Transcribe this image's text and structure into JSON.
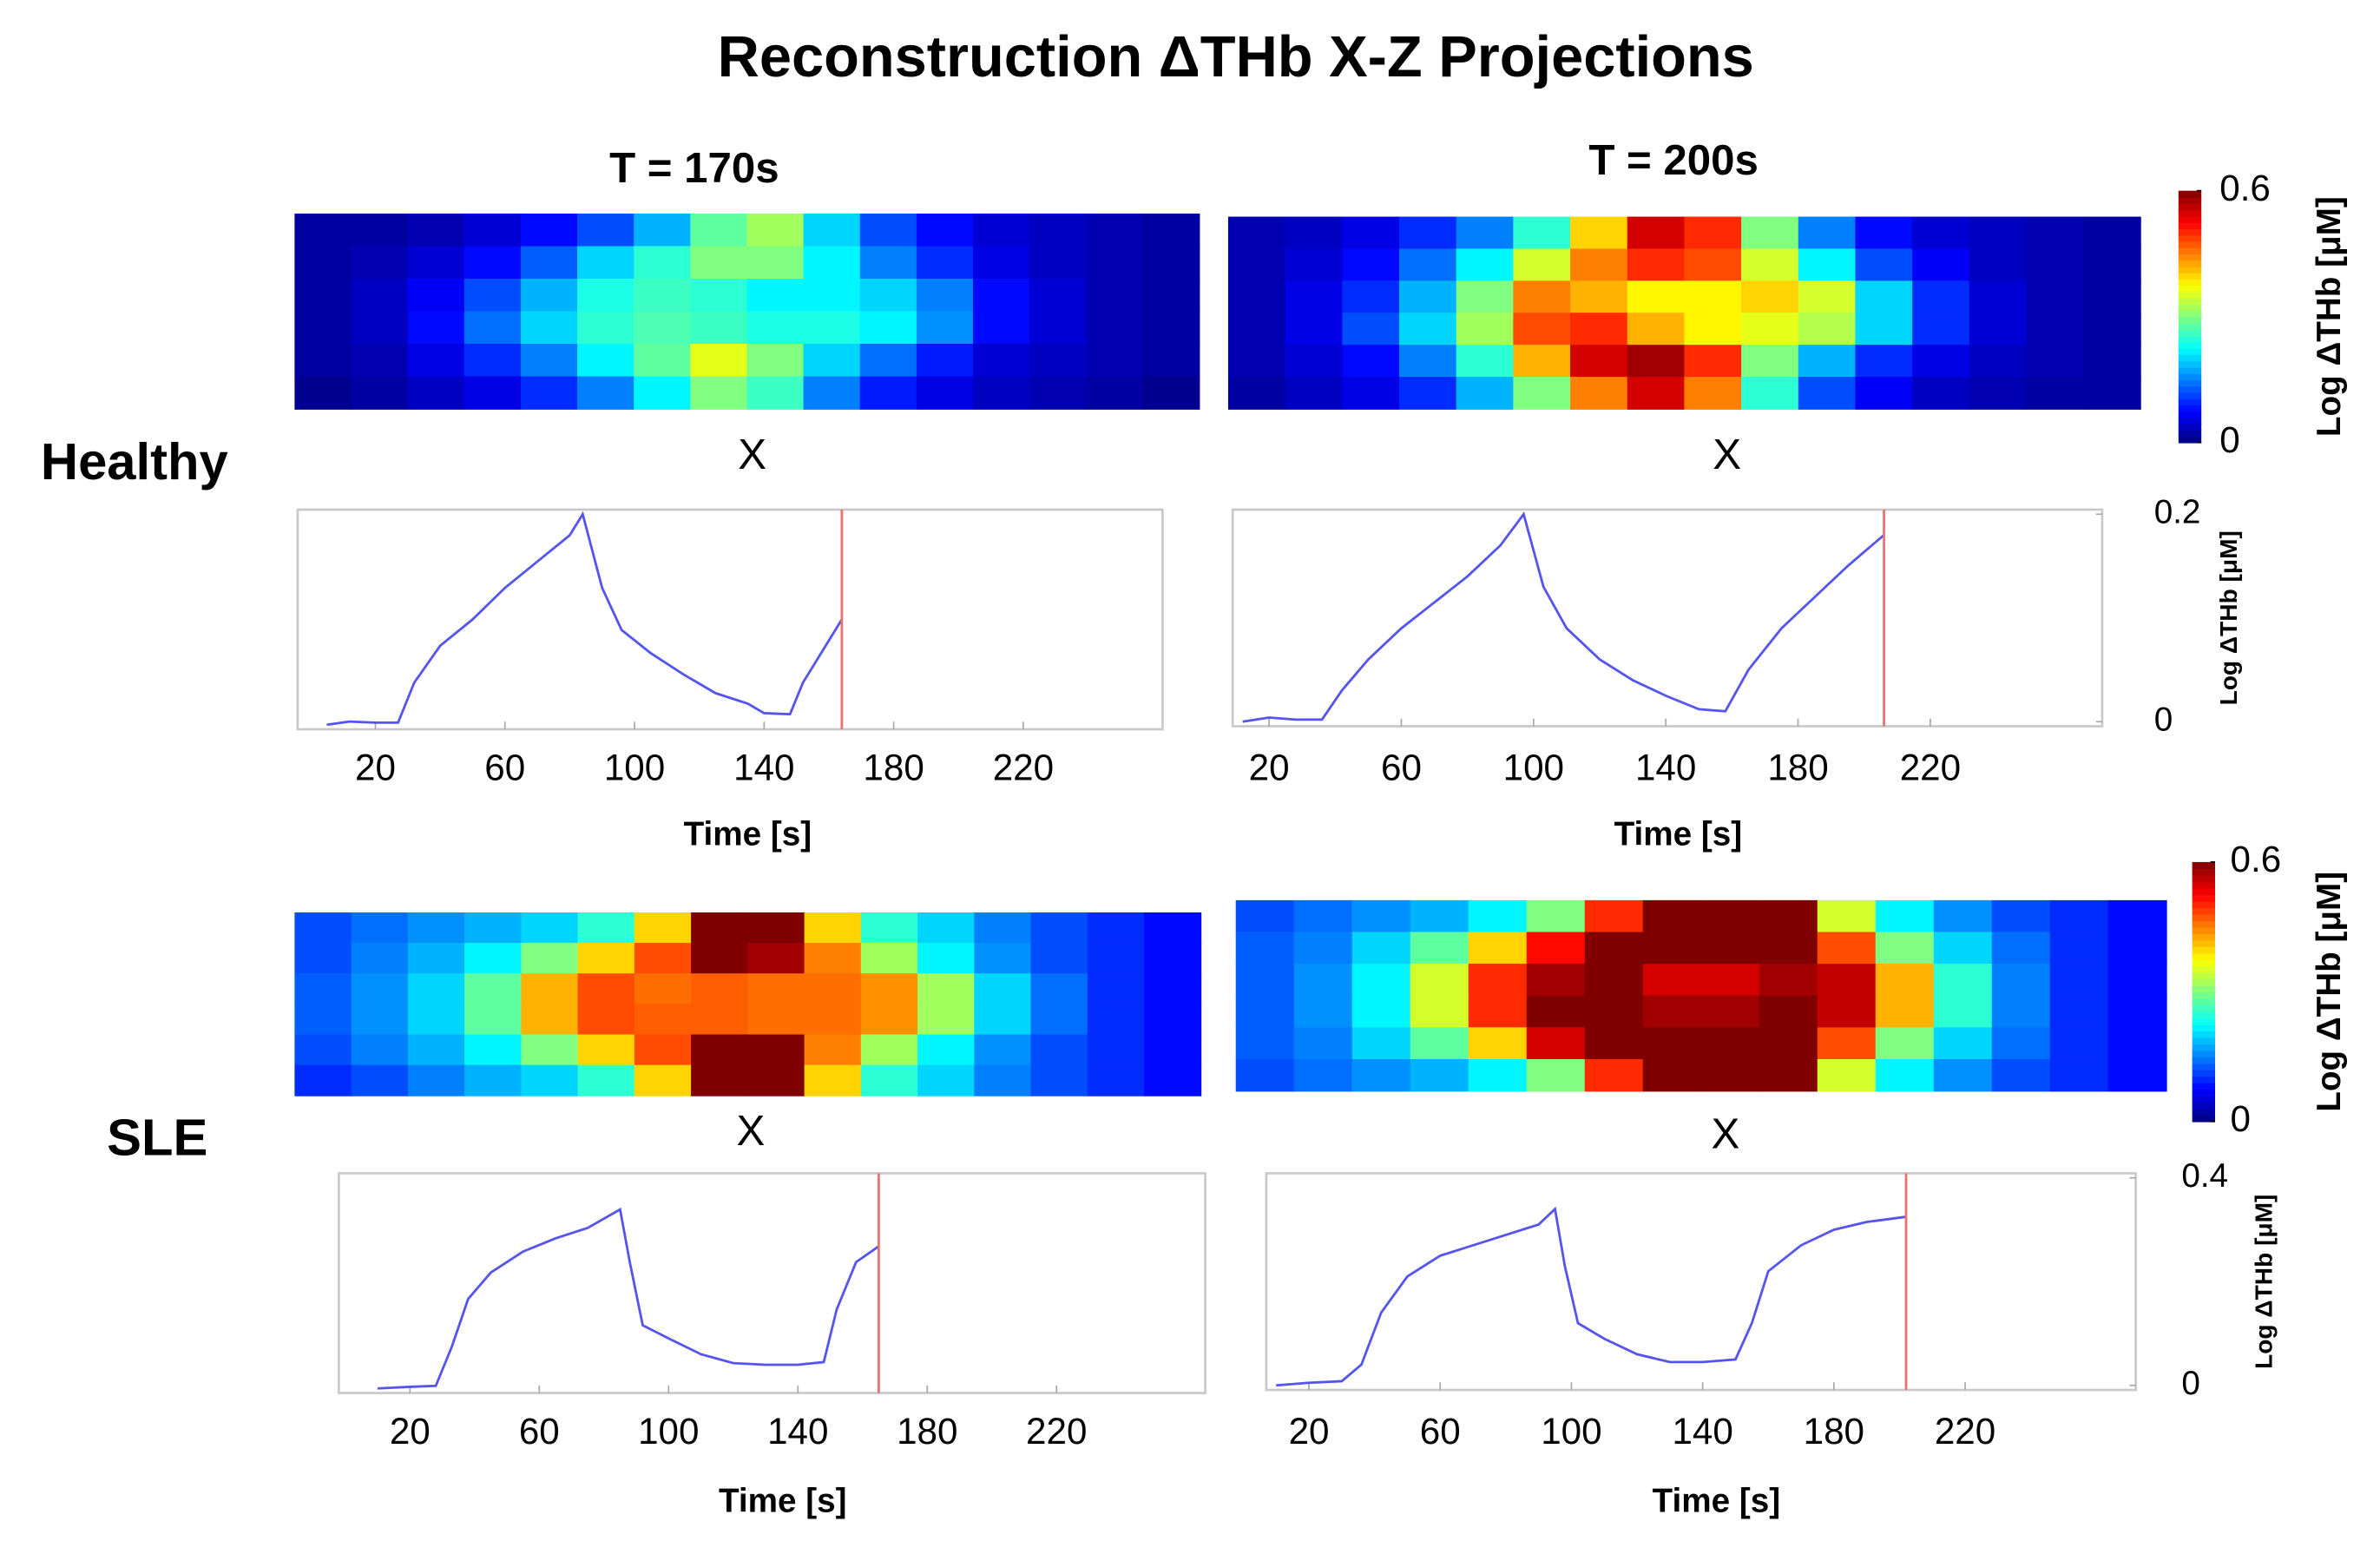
{
  "title": "Reconstruction ΔTHb X-Z Projections",
  "row_labels": [
    "Healthy",
    "SLE"
  ],
  "chart_data": [
    {
      "type": "heatmap",
      "title": "T = 170s",
      "xlabel": "X",
      "zlim": [
        0,
        0.6
      ],
      "colormap": "jet",
      "values": [
        [
          0.02,
          0.02,
          0.03,
          0.05,
          0.08,
          0.12,
          0.18,
          0.28,
          0.32,
          0.2,
          0.12,
          0.08,
          0.05,
          0.04,
          0.03,
          0.02
        ],
        [
          0.02,
          0.03,
          0.05,
          0.08,
          0.13,
          0.2,
          0.25,
          0.3,
          0.3,
          0.22,
          0.15,
          0.1,
          0.06,
          0.04,
          0.03,
          0.02
        ],
        [
          0.02,
          0.04,
          0.07,
          0.12,
          0.18,
          0.24,
          0.26,
          0.25,
          0.22,
          0.22,
          0.2,
          0.15,
          0.08,
          0.05,
          0.03,
          0.02
        ],
        [
          0.02,
          0.04,
          0.08,
          0.14,
          0.2,
          0.25,
          0.27,
          0.26,
          0.24,
          0.24,
          0.22,
          0.16,
          0.08,
          0.05,
          0.03,
          0.02
        ],
        [
          0.02,
          0.03,
          0.06,
          0.1,
          0.15,
          0.22,
          0.28,
          0.36,
          0.3,
          0.2,
          0.14,
          0.09,
          0.05,
          0.04,
          0.03,
          0.02
        ],
        [
          0.01,
          0.02,
          0.04,
          0.06,
          0.1,
          0.15,
          0.22,
          0.3,
          0.26,
          0.15,
          0.09,
          0.06,
          0.04,
          0.03,
          0.02,
          0.01
        ]
      ]
    },
    {
      "type": "heatmap",
      "title": "T = 200s",
      "xlabel": "X",
      "zlim": [
        0,
        0.6
      ],
      "colormap": "jet",
      "colorbar_ticks": [
        0,
        0.6
      ],
      "colorbar_label": "Log ΔTHb [μM]",
      "values": [
        [
          0.03,
          0.04,
          0.06,
          0.1,
          0.15,
          0.25,
          0.4,
          0.55,
          0.5,
          0.3,
          0.15,
          0.08,
          0.05,
          0.04,
          0.03,
          0.02
        ],
        [
          0.03,
          0.05,
          0.08,
          0.14,
          0.22,
          0.35,
          0.45,
          0.5,
          0.48,
          0.35,
          0.22,
          0.12,
          0.07,
          0.04,
          0.03,
          0.02
        ],
        [
          0.03,
          0.06,
          0.1,
          0.18,
          0.3,
          0.45,
          0.42,
          0.38,
          0.38,
          0.4,
          0.35,
          0.2,
          0.1,
          0.05,
          0.03,
          0.02
        ],
        [
          0.03,
          0.06,
          0.12,
          0.2,
          0.32,
          0.48,
          0.5,
          0.42,
          0.38,
          0.36,
          0.33,
          0.2,
          0.1,
          0.05,
          0.03,
          0.02
        ],
        [
          0.03,
          0.05,
          0.08,
          0.15,
          0.25,
          0.42,
          0.55,
          0.58,
          0.5,
          0.3,
          0.18,
          0.1,
          0.06,
          0.04,
          0.03,
          0.02
        ],
        [
          0.02,
          0.04,
          0.06,
          0.1,
          0.18,
          0.3,
          0.45,
          0.55,
          0.45,
          0.25,
          0.12,
          0.07,
          0.04,
          0.03,
          0.02,
          0.02
        ]
      ]
    },
    {
      "type": "heatmap",
      "xlabel": "X",
      "zlim": [
        0,
        0.6
      ],
      "colormap": "jet",
      "values": [
        [
          0.12,
          0.14,
          0.16,
          0.18,
          0.2,
          0.25,
          0.4,
          0.6,
          0.6,
          0.4,
          0.25,
          0.2,
          0.15,
          0.12,
          0.1,
          0.08
        ],
        [
          0.12,
          0.15,
          0.18,
          0.22,
          0.3,
          0.4,
          0.48,
          0.6,
          0.58,
          0.45,
          0.32,
          0.22,
          0.16,
          0.12,
          0.1,
          0.08
        ],
        [
          0.13,
          0.16,
          0.2,
          0.28,
          0.42,
          0.48,
          0.46,
          0.47,
          0.46,
          0.46,
          0.44,
          0.32,
          0.2,
          0.14,
          0.1,
          0.08
        ],
        [
          0.13,
          0.16,
          0.2,
          0.28,
          0.42,
          0.48,
          0.47,
          0.47,
          0.46,
          0.46,
          0.44,
          0.32,
          0.2,
          0.14,
          0.1,
          0.08
        ],
        [
          0.12,
          0.15,
          0.18,
          0.22,
          0.3,
          0.4,
          0.48,
          0.6,
          0.6,
          0.45,
          0.32,
          0.22,
          0.16,
          0.12,
          0.1,
          0.08
        ],
        [
          0.1,
          0.12,
          0.15,
          0.18,
          0.2,
          0.25,
          0.4,
          0.6,
          0.6,
          0.4,
          0.25,
          0.2,
          0.15,
          0.12,
          0.1,
          0.08
        ]
      ]
    },
    {
      "type": "heatmap",
      "xlabel": "X",
      "zlim": [
        0,
        0.6
      ],
      "colormap": "jet",
      "colorbar_ticks": [
        0,
        0.6
      ],
      "colorbar_label": "Log ΔTHb [μM]",
      "values": [
        [
          0.12,
          0.14,
          0.16,
          0.18,
          0.22,
          0.3,
          0.5,
          0.6,
          0.6,
          0.6,
          0.35,
          0.22,
          0.16,
          0.12,
          0.1,
          0.08
        ],
        [
          0.13,
          0.15,
          0.2,
          0.28,
          0.4,
          0.52,
          0.6,
          0.6,
          0.6,
          0.6,
          0.48,
          0.3,
          0.2,
          0.14,
          0.1,
          0.08
        ],
        [
          0.13,
          0.16,
          0.22,
          0.35,
          0.5,
          0.58,
          0.6,
          0.55,
          0.55,
          0.58,
          0.56,
          0.42,
          0.25,
          0.15,
          0.1,
          0.08
        ],
        [
          0.13,
          0.16,
          0.22,
          0.35,
          0.5,
          0.6,
          0.6,
          0.58,
          0.58,
          0.6,
          0.56,
          0.42,
          0.25,
          0.15,
          0.1,
          0.08
        ],
        [
          0.13,
          0.15,
          0.2,
          0.28,
          0.4,
          0.55,
          0.6,
          0.6,
          0.6,
          0.6,
          0.48,
          0.3,
          0.2,
          0.14,
          0.1,
          0.08
        ],
        [
          0.12,
          0.14,
          0.16,
          0.18,
          0.22,
          0.3,
          0.5,
          0.6,
          0.6,
          0.6,
          0.35,
          0.22,
          0.16,
          0.12,
          0.1,
          0.08
        ]
      ]
    },
    {
      "type": "line",
      "xlabel": "Time [s]",
      "xlim": [
        -4,
        263
      ],
      "xticks": [
        20,
        60,
        100,
        140,
        180,
        220
      ],
      "ylim": [
        0,
        0.2
      ],
      "color": "#5555ee",
      "cursor": 164,
      "cursor_color": "#f07070",
      "x": [
        5,
        12,
        20,
        27,
        32,
        40,
        50,
        60,
        70,
        80,
        84,
        90,
        96,
        105,
        115,
        125,
        135,
        140,
        148,
        152,
        158,
        164
      ],
      "values": [
        0,
        0.003,
        0.002,
        0.002,
        0.04,
        0.075,
        0.1,
        0.13,
        0.155,
        0.18,
        0.2,
        0.13,
        0.09,
        0.068,
        0.048,
        0.03,
        0.02,
        0.011,
        0.01,
        0.04,
        0.07,
        0.1
      ]
    },
    {
      "type": "line",
      "xlabel": "Time [s]",
      "xlim": [
        9,
        272
      ],
      "xticks": [
        20,
        60,
        100,
        140,
        180,
        220
      ],
      "ylim": [
        0,
        0.2
      ],
      "yticks": [
        0,
        0.2
      ],
      "ylabel": "Log ΔTHb [μM]",
      "color": "#5555ee",
      "cursor": 206,
      "cursor_color": "#f07070",
      "x": [
        12,
        20,
        28,
        36,
        42,
        50,
        60,
        70,
        80,
        90,
        97,
        103,
        110,
        120,
        130,
        140,
        150,
        158,
        165,
        175,
        185,
        195,
        206
      ],
      "values": [
        0,
        0.004,
        0.002,
        0.002,
        0.03,
        0.06,
        0.09,
        0.115,
        0.14,
        0.17,
        0.2,
        0.13,
        0.09,
        0.06,
        0.04,
        0.025,
        0.012,
        0.01,
        0.05,
        0.09,
        0.12,
        0.15,
        0.18
      ]
    },
    {
      "type": "line",
      "xlabel": "Time [s]",
      "xlim": [
        -2,
        266
      ],
      "xticks": [
        20,
        60,
        100,
        140,
        180,
        220
      ],
      "ylim": [
        0,
        0.4
      ],
      "color": "#5555ee",
      "cursor": 165,
      "cursor_color": "#f07070",
      "x": [
        10,
        20,
        28,
        33,
        38,
        45,
        55,
        65,
        75,
        85,
        88,
        92,
        100,
        110,
        120,
        130,
        140,
        148,
        152,
        158,
        165
      ],
      "values": [
        0,
        0.003,
        0.005,
        0.08,
        0.17,
        0.22,
        0.26,
        0.285,
        0.305,
        0.34,
        0.24,
        0.12,
        0.095,
        0.065,
        0.048,
        0.045,
        0.045,
        0.05,
        0.15,
        0.24,
        0.27
      ]
    },
    {
      "type": "line",
      "xlabel": "Time [s]",
      "xlim": [
        7,
        272
      ],
      "xticks": [
        20,
        60,
        100,
        140,
        180,
        220
      ],
      "ylim": [
        0,
        0.4
      ],
      "yticks": [
        0,
        0.4
      ],
      "ylabel": "Log ΔTHb [μM]",
      "color": "#5555ee",
      "cursor": 202,
      "cursor_color": "#f07070",
      "x": [
        10,
        20,
        30,
        36,
        42,
        50,
        60,
        70,
        80,
        90,
        95,
        98,
        102,
        110,
        120,
        130,
        140,
        150,
        155,
        160,
        170,
        180,
        190,
        202
      ],
      "values": [
        0,
        0.005,
        0.008,
        0.04,
        0.14,
        0.21,
        0.25,
        0.27,
        0.29,
        0.31,
        0.34,
        0.23,
        0.12,
        0.09,
        0.06,
        0.045,
        0.045,
        0.05,
        0.12,
        0.22,
        0.27,
        0.3,
        0.315,
        0.325
      ]
    }
  ]
}
